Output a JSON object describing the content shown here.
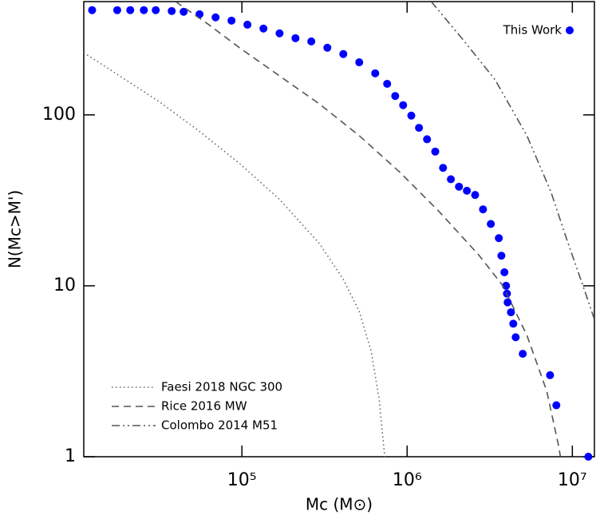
{
  "chart_data": {
    "type": "scatter",
    "xlabel": "Mc (M⊙)",
    "ylabel": "N(Mc>M')",
    "xlog": true,
    "ylog": true,
    "xlim": [
      11040,
      13600000
    ],
    "ylim": [
      1,
      460
    ],
    "xticks": [
      {
        "value": 100000,
        "label": "10⁵"
      },
      {
        "value": 1000000,
        "label": "10⁶"
      },
      {
        "value": 10000000,
        "label": "10⁷"
      }
    ],
    "yticks": [
      1,
      10,
      100
    ],
    "series": [
      {
        "name": "This Work",
        "type": "scatter",
        "color": "#0000ff",
        "x": [
          12400,
          17600,
          21100,
          25500,
          30100,
          37600,
          44400,
          55400,
          69300,
          86500,
          108000,
          135000,
          169000,
          211000,
          263000,
          329000,
          411000,
          513000,
          641000,
          757000,
          847000,
          946000,
          1060000,
          1180000,
          1320000,
          1480000,
          1650000,
          1840000,
          2060000,
          2300000,
          2580000,
          2880000,
          3210000,
          3590000,
          3720000,
          3880000,
          3970000,
          4020000,
          4060000,
          4250000,
          4390000,
          4540000,
          5010000,
          7330000,
          8000000,
          12500000
        ],
        "y": [
          410,
          410,
          410,
          410,
          410,
          405,
          401,
          388,
          372,
          356,
          337,
          320,
          300,
          281,
          269,
          247,
          227,
          203,
          175,
          152,
          129,
          114,
          99,
          84,
          72,
          61,
          49,
          42,
          38,
          36,
          34,
          28,
          23,
          19,
          15,
          12,
          10,
          9,
          8,
          7,
          6,
          5,
          4,
          3,
          2,
          1
        ]
      },
      {
        "name": "Faesi 2018 NGC 300",
        "type": "line",
        "dash": "dotted",
        "color": "#666666",
        "x": [
          11040,
          18200,
          31800,
          55400,
          96700,
          169000,
          294000,
          411000,
          513000,
          606000,
          677000,
          732000
        ],
        "y": [
          231,
          169,
          119,
          80,
          52,
          32,
          17.7,
          10.9,
          7.1,
          4.14,
          2.17,
          1
        ]
      },
      {
        "name": "Rice 2016 MW",
        "type": "line",
        "dash": "dashed",
        "color": "#555555",
        "x": [
          39700,
          62000,
          96700,
          169000,
          294000,
          513000,
          895000,
          1560000,
          2720000,
          3800000,
          5310000,
          7000000,
          8280000,
          8470000
        ],
        "y": [
          460,
          341,
          247,
          169,
          116,
          75.6,
          46.6,
          27.2,
          15.1,
          10,
          5.13,
          2.42,
          1.14,
          1
        ]
      },
      {
        "name": "Colombo 2014 M51",
        "type": "line",
        "dash": "dashdotdot",
        "color": "#555555",
        "x": [
          1400000,
          2180000,
          3400000,
          5310000,
          7410000,
          9250000,
          11600000,
          13600000
        ],
        "y": [
          460,
          275,
          161,
          75.6,
          35.6,
          18.7,
          10,
          6.37
        ]
      }
    ]
  }
}
